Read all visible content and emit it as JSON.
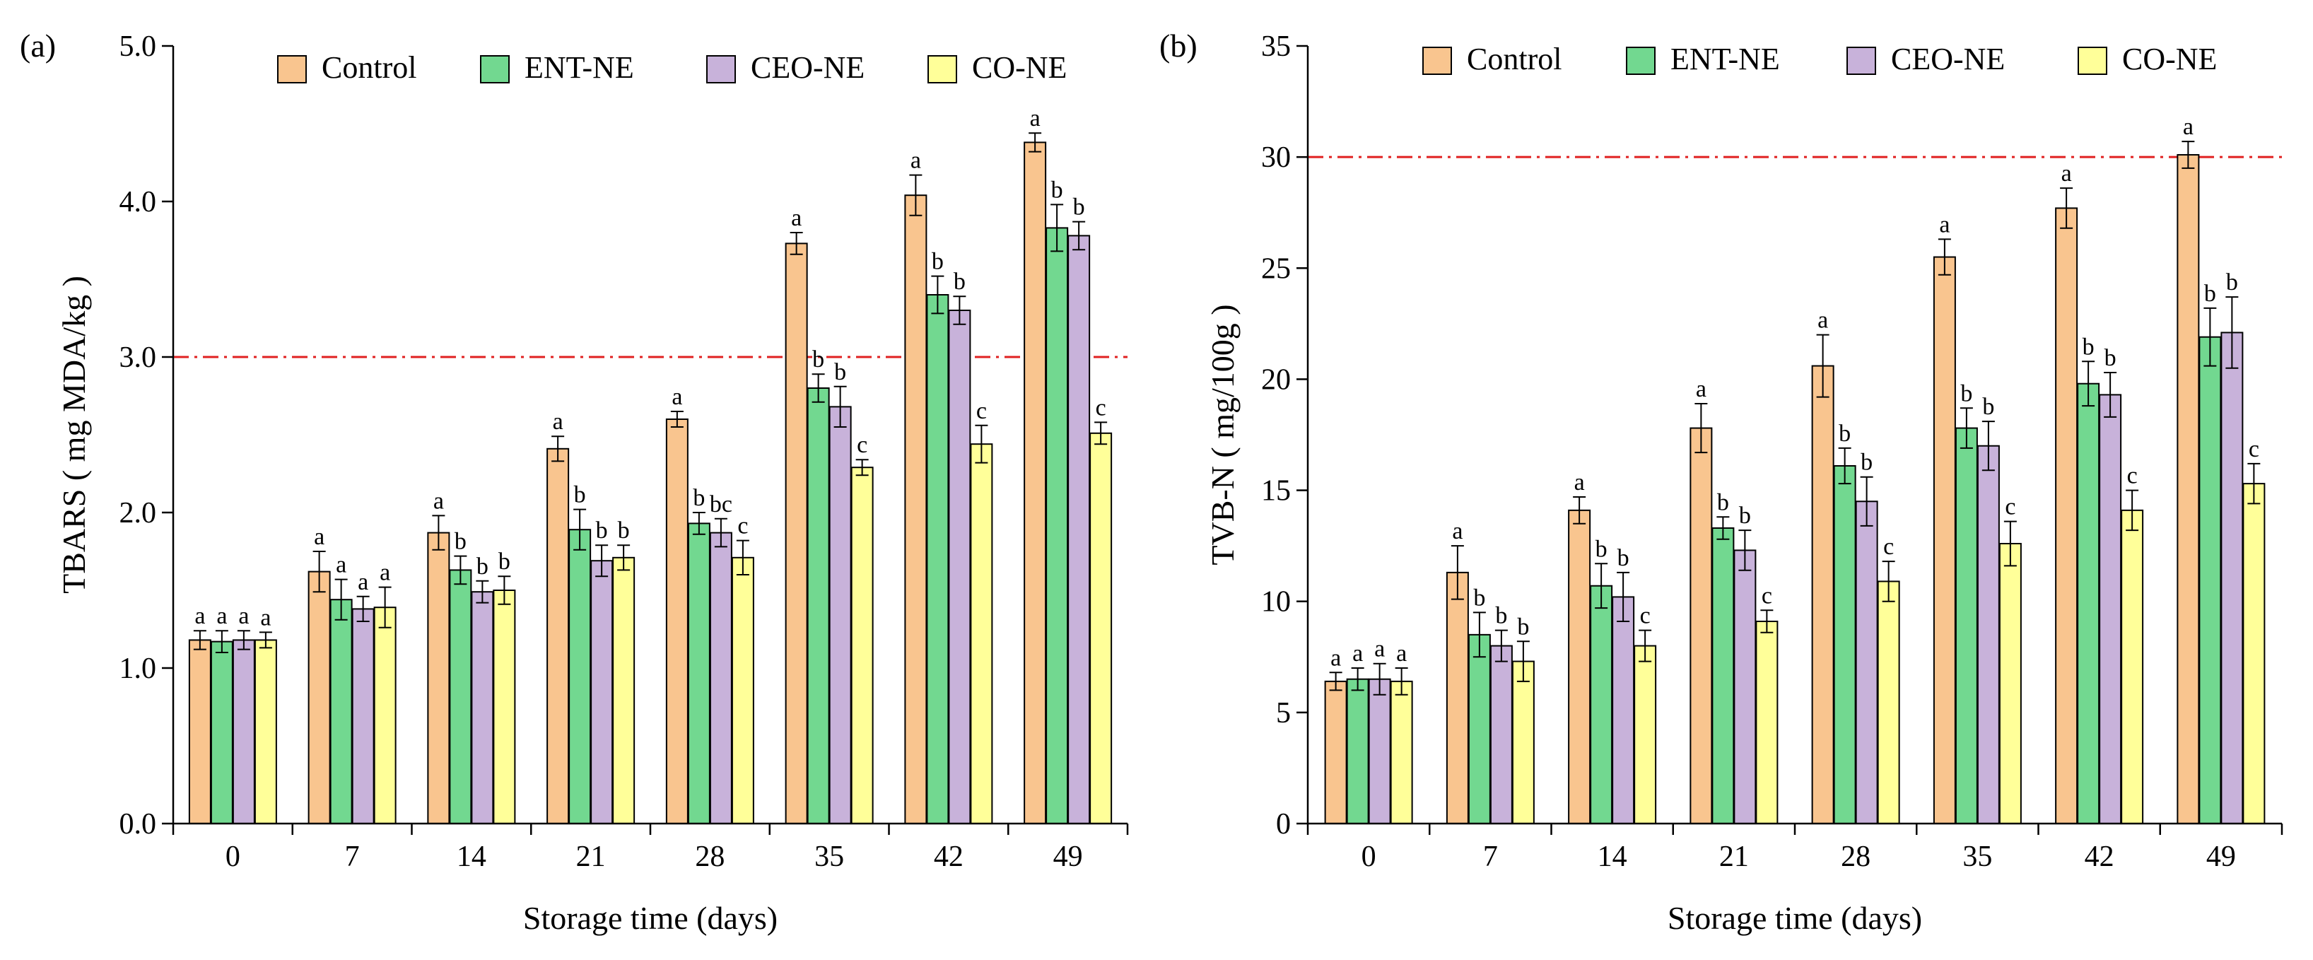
{
  "colors": {
    "Control": "#f9c58f",
    "ENT-NE": "#72d890",
    "CEO-NE": "#c8b2da",
    "CO-NE": "#ffff99",
    "threshold": "#e02020"
  },
  "chart_data": [
    {
      "type": "bar",
      "panel_label": "(a)",
      "xlabel": "Storage time (days)",
      "ylabel": "TBARS ( mg MDA/kg )",
      "ylim": [
        0,
        5
      ],
      "yticks": [
        0,
        1,
        2,
        3,
        4,
        5
      ],
      "ytick_labels": [
        "0.0",
        "1.0",
        "2.0",
        "3.0",
        "4.0",
        "5.0"
      ],
      "threshold": 3.0,
      "legend": "top",
      "categories": [
        "0",
        "7",
        "14",
        "21",
        "28",
        "35",
        "42",
        "49"
      ],
      "series": [
        {
          "name": "Control",
          "values": [
            1.18,
            1.62,
            1.87,
            2.41,
            2.6,
            3.73,
            4.04,
            4.38
          ],
          "errors": [
            0.06,
            0.13,
            0.11,
            0.08,
            0.05,
            0.07,
            0.13,
            0.06
          ],
          "labels": [
            "a",
            "a",
            "a",
            "a",
            "a",
            "a",
            "a",
            "a"
          ]
        },
        {
          "name": "ENT-NE",
          "values": [
            1.17,
            1.44,
            1.63,
            1.89,
            1.93,
            2.8,
            3.4,
            3.83
          ],
          "errors": [
            0.07,
            0.13,
            0.09,
            0.13,
            0.07,
            0.09,
            0.12,
            0.15
          ],
          "labels": [
            "a",
            "a",
            "b",
            "b",
            "b",
            "b",
            "b",
            "b"
          ]
        },
        {
          "name": "CEO-NE",
          "values": [
            1.18,
            1.38,
            1.49,
            1.69,
            1.87,
            2.68,
            3.3,
            3.78
          ],
          "errors": [
            0.06,
            0.08,
            0.07,
            0.1,
            0.09,
            0.13,
            0.09,
            0.09
          ],
          "labels": [
            "a",
            "a",
            "b",
            "b",
            "bc",
            "b",
            "b",
            "b"
          ]
        },
        {
          "name": "CO-NE",
          "values": [
            1.18,
            1.39,
            1.5,
            1.71,
            1.71,
            2.29,
            2.44,
            2.51
          ],
          "errors": [
            0.05,
            0.13,
            0.09,
            0.08,
            0.11,
            0.05,
            0.12,
            0.07
          ],
          "labels": [
            "a",
            "a",
            "b",
            "b",
            "c",
            "c",
            "c",
            "c"
          ]
        }
      ]
    },
    {
      "type": "bar",
      "panel_label": "(b)",
      "xlabel": "Storage time (days)",
      "ylabel": "TVB-N ( mg/100g )",
      "ylim": [
        0,
        35
      ],
      "yticks": [
        0,
        5,
        10,
        15,
        20,
        25,
        30,
        35
      ],
      "ytick_labels": [
        "0",
        "5",
        "10",
        "15",
        "20",
        "25",
        "30",
        "35"
      ],
      "threshold": 30,
      "legend": "top",
      "categories": [
        "0",
        "7",
        "14",
        "21",
        "28",
        "35",
        "42",
        "49"
      ],
      "series": [
        {
          "name": "Control",
          "values": [
            6.4,
            11.3,
            14.1,
            17.8,
            20.6,
            25.5,
            27.7,
            30.1
          ],
          "errors": [
            0.4,
            1.2,
            0.6,
            1.1,
            1.4,
            0.8,
            0.9,
            0.6
          ],
          "labels": [
            "a",
            "a",
            "a",
            "a",
            "a",
            "a",
            "a",
            "a"
          ]
        },
        {
          "name": "ENT-NE",
          "values": [
            6.5,
            8.5,
            10.7,
            13.3,
            16.1,
            17.8,
            19.8,
            21.9
          ],
          "errors": [
            0.5,
            1.0,
            1.0,
            0.5,
            0.8,
            0.9,
            1.0,
            1.3
          ],
          "labels": [
            "a",
            "b",
            "b",
            "b",
            "b",
            "b",
            "b",
            "b"
          ]
        },
        {
          "name": "CEO-NE",
          "values": [
            6.5,
            8.0,
            10.2,
            12.3,
            14.5,
            17.0,
            19.3,
            22.1
          ],
          "errors": [
            0.7,
            0.7,
            1.1,
            0.9,
            1.1,
            1.1,
            1.0,
            1.6
          ],
          "labels": [
            "a",
            "b",
            "b",
            "b",
            "b",
            "b",
            "b",
            "b"
          ]
        },
        {
          "name": "CO-NE",
          "values": [
            6.4,
            7.3,
            8.0,
            9.1,
            10.9,
            12.6,
            14.1,
            15.3
          ],
          "errors": [
            0.6,
            0.9,
            0.7,
            0.5,
            0.9,
            1.0,
            0.9,
            0.9
          ],
          "labels": [
            "a",
            "b",
            "c",
            "c",
            "c",
            "c",
            "c",
            "c"
          ]
        }
      ]
    }
  ]
}
